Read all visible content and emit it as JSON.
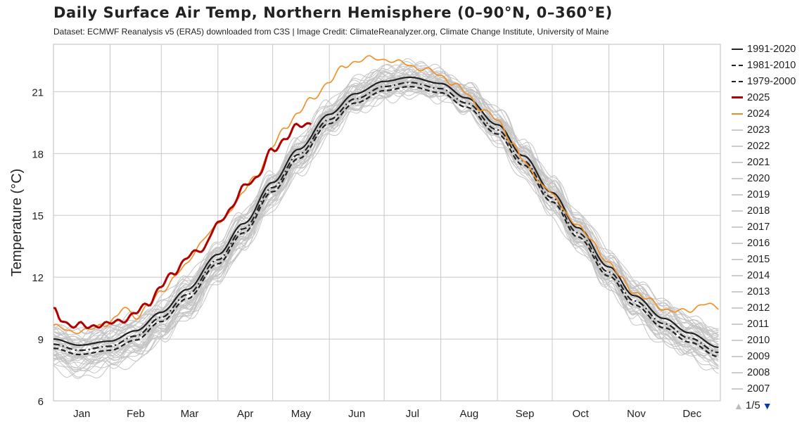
{
  "header": {
    "title": "Daily Surface Air Temp, Northern Hemisphere (0–90°N, 0–360°E)",
    "subtitle": "Dataset: ECMWF Reanalysis v5 (ERA5) downloaded from C3S | Image Credit: ClimateReanalyzer.org, Climate Change Institute, University of Maine"
  },
  "legend": {
    "items": [
      {
        "label": "1991-2020",
        "style": "solid",
        "color": "#222222"
      },
      {
        "label": "1981-2010",
        "style": "dashdot",
        "color": "#222222"
      },
      {
        "label": "1979-2000",
        "style": "dashed",
        "color": "#222222"
      },
      {
        "label": "2025",
        "style": "solid",
        "color": "#b00000"
      },
      {
        "label": "2024",
        "style": "solid",
        "color": "#f28c1e"
      },
      {
        "label": "2023",
        "style": "solid",
        "color": "#cccccc"
      },
      {
        "label": "2022",
        "style": "solid",
        "color": "#cccccc"
      },
      {
        "label": "2021",
        "style": "solid",
        "color": "#cccccc"
      },
      {
        "label": "2020",
        "style": "solid",
        "color": "#cccccc"
      },
      {
        "label": "2019",
        "style": "solid",
        "color": "#cccccc"
      },
      {
        "label": "2018",
        "style": "solid",
        "color": "#cccccc"
      },
      {
        "label": "2017",
        "style": "solid",
        "color": "#cccccc"
      },
      {
        "label": "2016",
        "style": "solid",
        "color": "#cccccc"
      },
      {
        "label": "2015",
        "style": "solid",
        "color": "#cccccc"
      },
      {
        "label": "2014",
        "style": "solid",
        "color": "#cccccc"
      },
      {
        "label": "2013",
        "style": "solid",
        "color": "#cccccc"
      },
      {
        "label": "2012",
        "style": "solid",
        "color": "#cccccc"
      },
      {
        "label": "2011",
        "style": "solid",
        "color": "#cccccc"
      },
      {
        "label": "2010",
        "style": "solid",
        "color": "#cccccc"
      },
      {
        "label": "2009",
        "style": "solid",
        "color": "#cccccc"
      },
      {
        "label": "2008",
        "style": "solid",
        "color": "#cccccc"
      },
      {
        "label": "2007",
        "style": "solid",
        "color": "#cccccc"
      }
    ],
    "pager": "1/5",
    "up_icon": "triangle-up-icon",
    "down_icon": "triangle-down-icon"
  },
  "chart_data": {
    "type": "line",
    "ylabel": "Temperature (°C)",
    "xlabel": "",
    "ylim": [
      6,
      23.3
    ],
    "yticks": [
      6,
      9,
      12,
      15,
      18,
      21
    ],
    "xlim": [
      1,
      366
    ],
    "months": [
      "Jan",
      "Feb",
      "Mar",
      "Apr",
      "May",
      "Jun",
      "Jul",
      "Aug",
      "Sep",
      "Oct",
      "Nov",
      "Dec"
    ],
    "grid": true,
    "legend_position": "right",
    "colors": {
      "reference": "#222222",
      "y2025": "#b00000",
      "y2024": "#f28c1e",
      "past_years": "#c4c4c4"
    },
    "series": [
      {
        "name": "1991-2020",
        "style": "solid",
        "color": "#222222",
        "x": [
          1,
          15,
          32,
          46,
          60,
          74,
          91,
          105,
          121,
          135,
          152,
          166,
          182,
          196,
          213,
          227,
          244,
          258,
          274,
          288,
          305,
          319,
          335,
          349,
          365
        ],
        "y": [
          9.0,
          8.7,
          8.9,
          9.4,
          10.3,
          11.4,
          13.1,
          14.6,
          16.6,
          18.2,
          19.9,
          20.9,
          21.5,
          21.7,
          21.4,
          20.7,
          19.4,
          17.9,
          16.1,
          14.4,
          12.5,
          11.1,
          10.0,
          9.3,
          8.6
        ]
      },
      {
        "name": "1981-2010",
        "style": "dashdot",
        "color": "#222222",
        "x": [
          1,
          15,
          32,
          46,
          60,
          74,
          91,
          105,
          121,
          135,
          152,
          166,
          182,
          196,
          213,
          227,
          244,
          258,
          274,
          288,
          305,
          319,
          335,
          349,
          365
        ],
        "y": [
          8.75,
          8.45,
          8.65,
          9.15,
          10.05,
          11.15,
          12.85,
          14.35,
          16.35,
          17.95,
          19.65,
          20.65,
          21.25,
          21.45,
          21.15,
          20.45,
          19.15,
          17.65,
          15.85,
          14.15,
          12.25,
          10.85,
          9.75,
          9.05,
          8.35
        ]
      },
      {
        "name": "1979-2000",
        "style": "dashed",
        "color": "#222222",
        "x": [
          1,
          15,
          32,
          46,
          60,
          74,
          91,
          105,
          121,
          135,
          152,
          166,
          182,
          196,
          213,
          227,
          244,
          258,
          274,
          288,
          305,
          319,
          335,
          349,
          365
        ],
        "y": [
          8.55,
          8.25,
          8.45,
          8.95,
          9.85,
          10.95,
          12.65,
          14.15,
          16.15,
          17.75,
          19.45,
          20.45,
          21.05,
          21.25,
          20.95,
          20.25,
          18.95,
          17.45,
          15.65,
          13.95,
          12.05,
          10.65,
          9.55,
          8.85,
          8.15
        ]
      },
      {
        "name": "2025",
        "style": "solid",
        "color": "#b00000",
        "x": [
          1,
          5,
          10,
          15,
          20,
          25,
          32,
          40,
          46,
          53,
          60,
          67,
          74,
          82,
          91,
          98,
          105,
          112,
          121,
          128,
          135,
          142
        ],
        "y": [
          10.4,
          9.85,
          9.75,
          9.7,
          9.5,
          9.75,
          9.7,
          10.0,
          10.2,
          10.8,
          11.5,
          12.3,
          12.9,
          13.4,
          14.5,
          15.4,
          16.3,
          16.9,
          18.1,
          18.8,
          19.3,
          19.55
        ]
      },
      {
        "name": "2024",
        "style": "solid",
        "color": "#f28c1e",
        "x": [
          1,
          10,
          20,
          28,
          35,
          40,
          46,
          53,
          60,
          67,
          74,
          82,
          91,
          98,
          105,
          112,
          121,
          128,
          135,
          142,
          152,
          160,
          166,
          174,
          182,
          190,
          196,
          203,
          213,
          220,
          227,
          235,
          244,
          252,
          258,
          266,
          274,
          281,
          288,
          296,
          305,
          312,
          319,
          326,
          335,
          342,
          349,
          356,
          365
        ],
        "y": [
          9.6,
          9.4,
          9.4,
          9.7,
          10.0,
          10.5,
          10.1,
          10.6,
          11.3,
          12.0,
          12.6,
          13.8,
          14.5,
          15.3,
          16.1,
          17.0,
          18.3,
          19.3,
          20.0,
          20.6,
          21.5,
          22.2,
          22.5,
          22.6,
          22.6,
          22.4,
          22.3,
          22.1,
          21.8,
          21.4,
          20.9,
          20.2,
          19.6,
          18.6,
          17.6,
          16.8,
          16.0,
          15.2,
          14.5,
          13.7,
          12.7,
          11.9,
          11.3,
          10.9,
          10.5,
          10.3,
          10.4,
          10.7,
          10.5
        ]
      }
    ],
    "past_years_band": {
      "x": [
        1,
        15,
        32,
        46,
        60,
        74,
        91,
        105,
        121,
        135,
        152,
        166,
        182,
        196,
        213,
        227,
        244,
        258,
        274,
        288,
        305,
        319,
        335,
        349,
        365
      ],
      "low": [
        7.5,
        7.1,
        7.4,
        7.8,
        8.7,
        9.8,
        11.6,
        13.2,
        15.3,
        17.0,
        18.9,
        19.9,
        20.6,
        20.9,
        20.6,
        19.9,
        18.5,
        16.9,
        15.0,
        13.2,
        11.3,
        9.8,
        8.6,
        7.9,
        7.3
      ],
      "high": [
        9.7,
        9.5,
        9.9,
        10.3,
        11.0,
        12.1,
        13.8,
        15.2,
        17.1,
        18.7,
        20.5,
        21.6,
        22.2,
        22.3,
        22.1,
        21.4,
        20.1,
        18.6,
        16.9,
        15.2,
        13.3,
        12.0,
        10.9,
        10.3,
        9.6
      ]
    }
  }
}
